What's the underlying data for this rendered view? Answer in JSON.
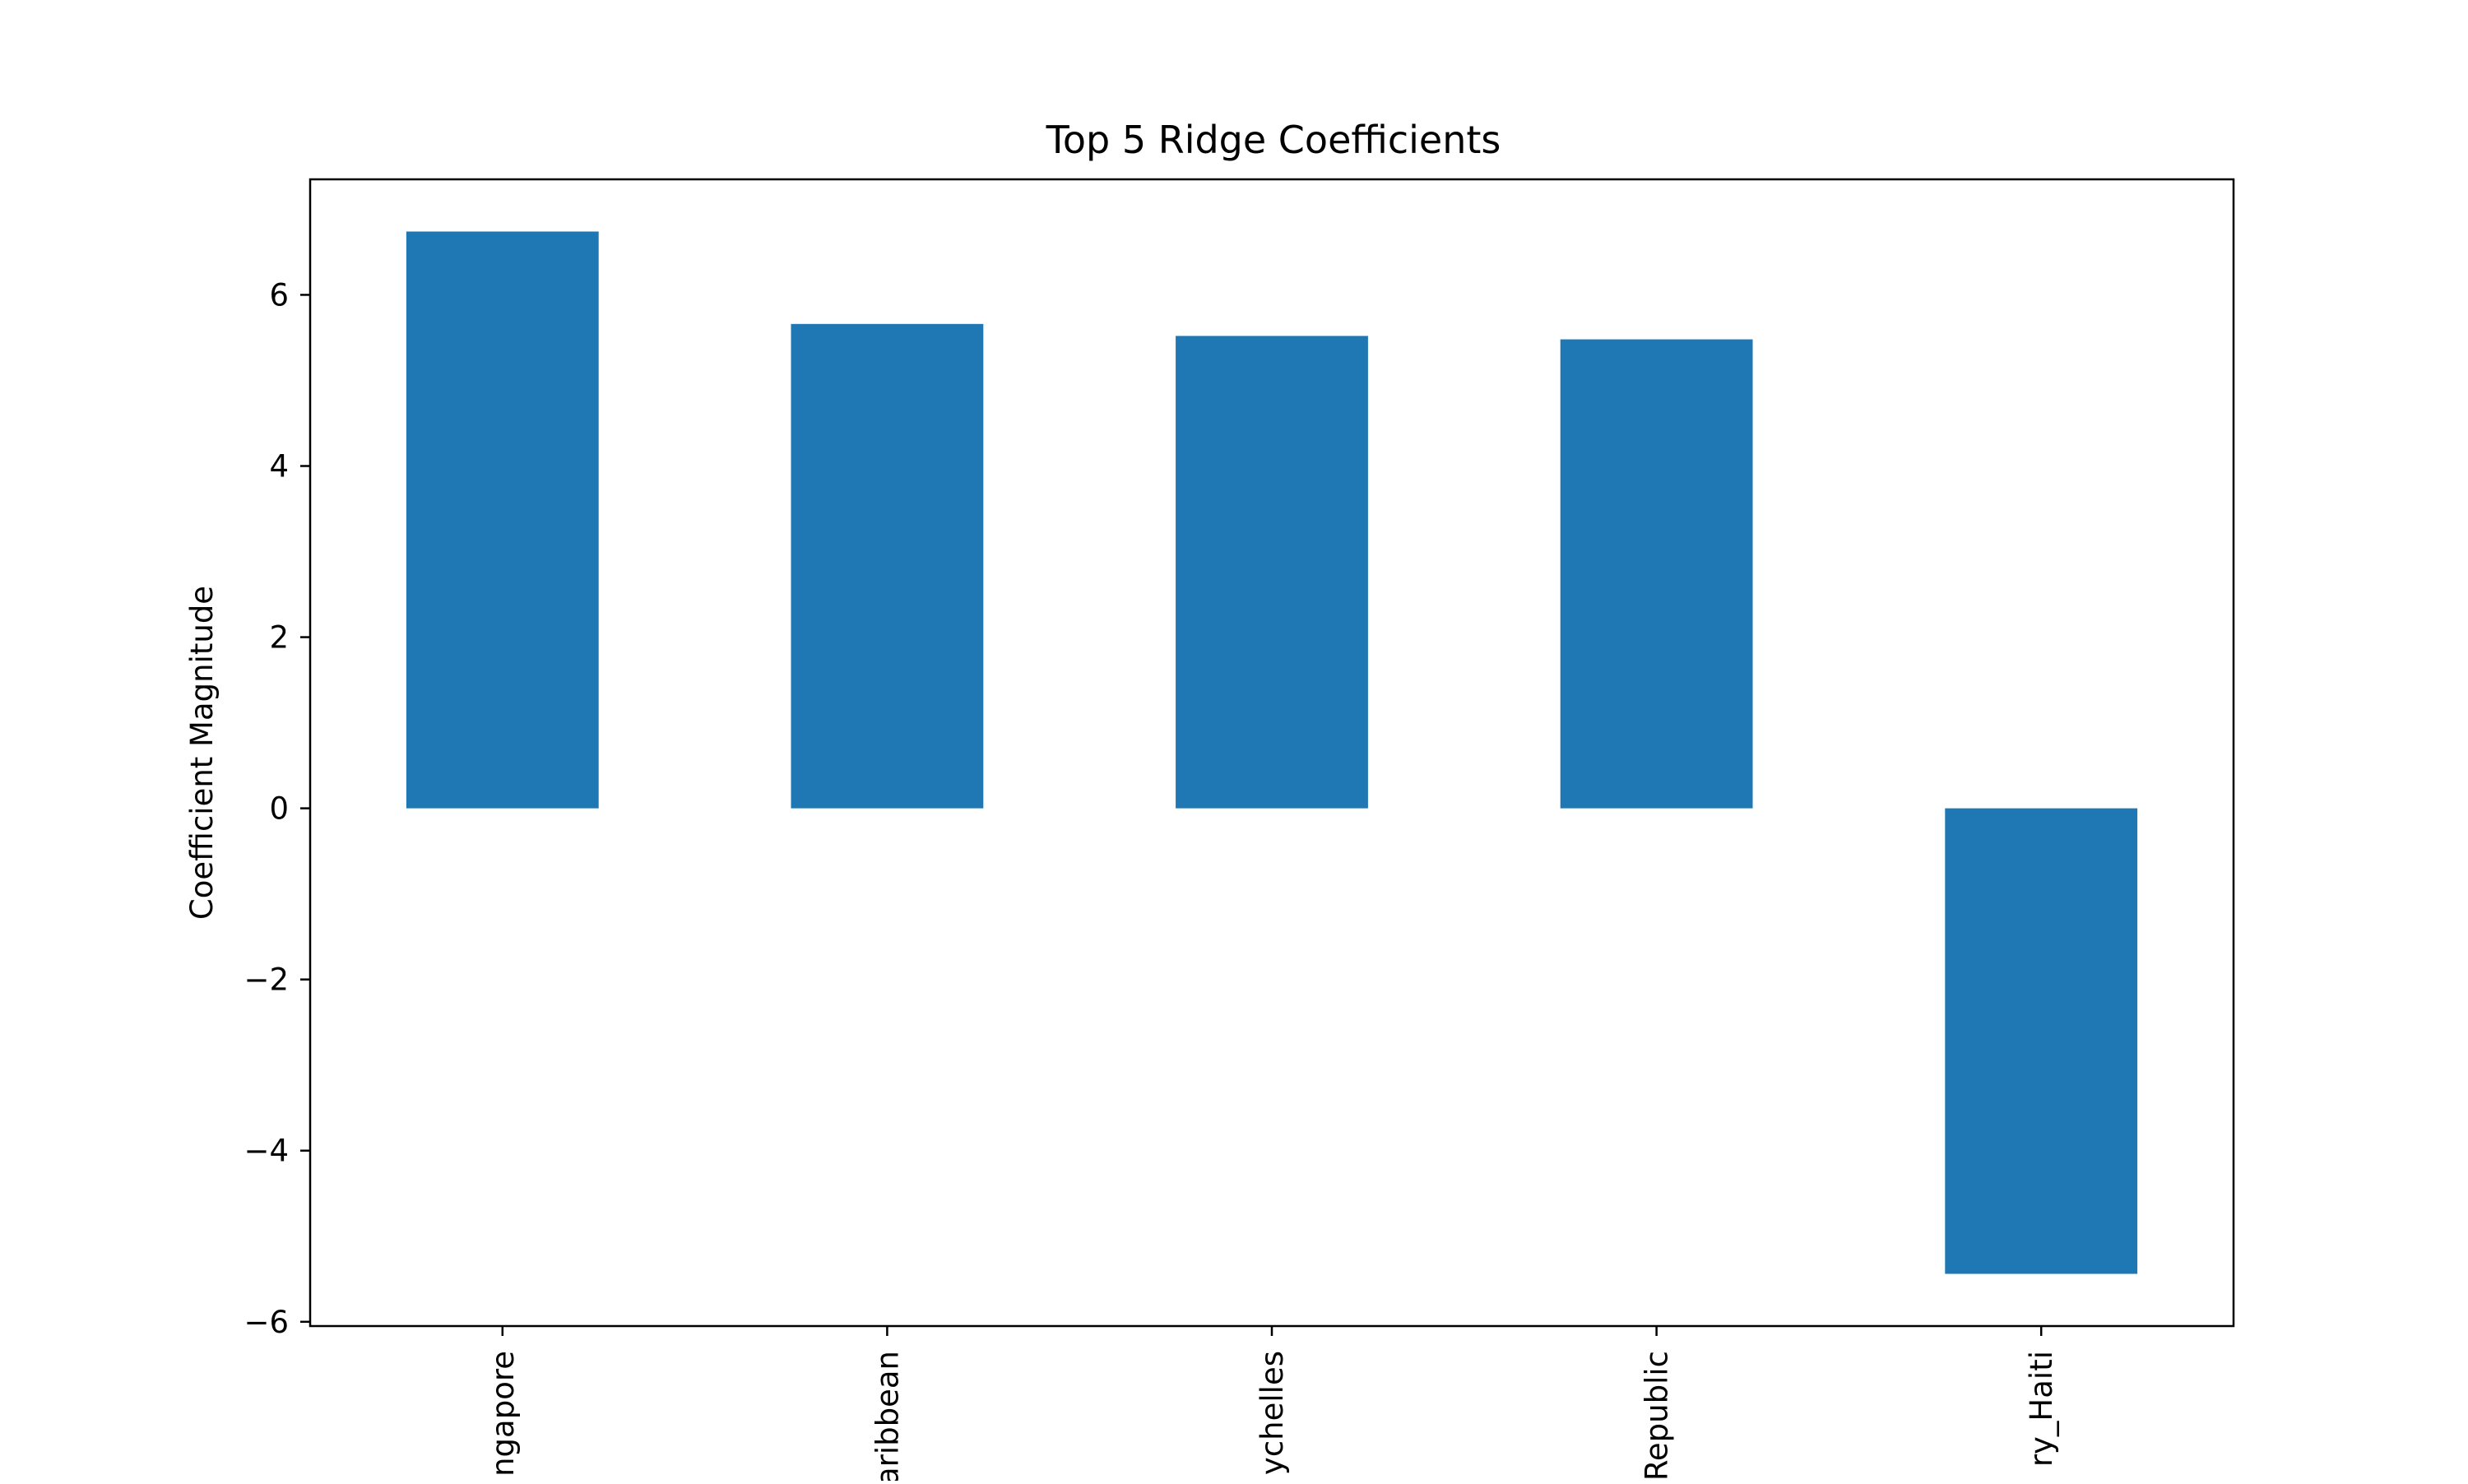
{
  "chart_data": {
    "type": "bar",
    "title": "Top 5 Ridge Coefficients",
    "xlabel": "",
    "ylabel": "Coefficient Magnitude",
    "categories": [
      "ngapore",
      "aribbean",
      "ychelles",
      "Republic",
      "ry_Haiti"
    ],
    "values": [
      6.74,
      5.66,
      5.52,
      5.48,
      -5.44
    ],
    "ylim": [
      -6.05,
      7.35
    ],
    "yticks": [
      -6,
      -4,
      -2,
      0,
      2,
      4,
      6
    ],
    "ytick_labels": [
      "−6",
      "−4",
      "−2",
      "0",
      "2",
      "4",
      "6"
    ],
    "grid": false,
    "bar_color": "#1f77b4"
  }
}
